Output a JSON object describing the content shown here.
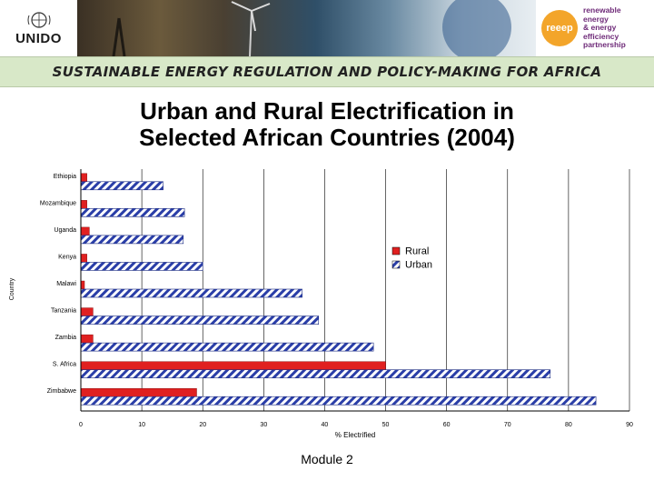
{
  "banner": {
    "left_logo": "UNIDO",
    "right_logo_mark": "reeep",
    "right_logo_lines": [
      "renewable",
      "energy",
      "& energy",
      "efficiency",
      "partnership"
    ]
  },
  "subtitle_strip": "SUSTAINABLE ENERGY REGULATION AND POLICY-MAKING FOR AFRICA",
  "footer_text": "Module 2",
  "chart_data": {
    "type": "bar",
    "orientation": "horizontal",
    "title_lines": [
      "Urban and Rural Electrification in",
      "Selected African Countries (2004)"
    ],
    "xlabel": "% Electrified",
    "ylabel": "Country",
    "xlim": [
      0,
      90
    ],
    "xticks": [
      "0",
      "10",
      "20",
      "30",
      "40",
      "50",
      "60",
      "70",
      "80",
      "90"
    ],
    "categories": [
      "Ethiopia",
      "Mozambique",
      "Uganda",
      "Kenya",
      "Malawi",
      "Tanzania",
      "Zambia",
      "S. Africa",
      "Zimbabwe"
    ],
    "series": [
      {
        "name": "Rural",
        "values": [
          1,
          1,
          1.4,
          1,
          0.6,
          2,
          2,
          50,
          19
        ],
        "color": "#e02020"
      },
      {
        "name": "Urban",
        "values": [
          13.5,
          17,
          16.8,
          20,
          36.3,
          39,
          48,
          77,
          84.5
        ],
        "color": "#2a3ea8"
      }
    ],
    "legend_position": "right-middle",
    "grid": "vertical"
  }
}
